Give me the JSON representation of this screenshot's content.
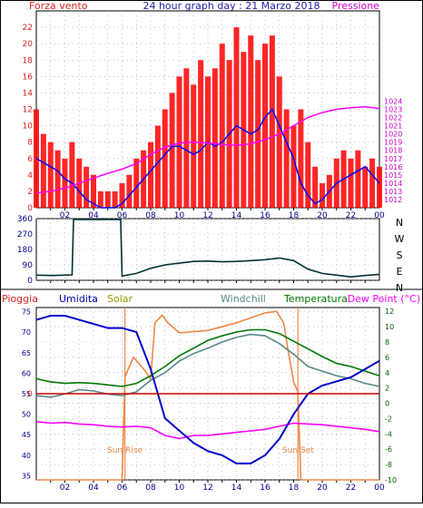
{
  "chart_data": [
    {
      "type": "line",
      "title": "24 hour graph day : 21 Marzo 2018",
      "left_axis_label": "Forza vento",
      "right_axis_label": "Pressione",
      "ylim_left": [
        0,
        24
      ],
      "yticks_left": [
        0,
        2,
        4,
        6,
        8,
        10,
        12,
        14,
        16,
        18,
        20,
        22
      ],
      "ylim_right": [
        1011,
        1035
      ],
      "yticks_right": [
        1012,
        1013,
        1014,
        1015,
        1016,
        1017,
        1018,
        1019,
        1020,
        1021,
        1022,
        1023,
        1024
      ],
      "xlim": [
        0,
        24
      ],
      "xticks": [
        "02",
        "04",
        "06",
        "08",
        "10",
        "12",
        "14",
        "16",
        "18",
        "20",
        "22",
        "00"
      ],
      "grid": true,
      "series": [
        {
          "axis": "left",
          "color": "#ff0000",
          "kind": "bars",
          "x": [
            0,
            0.5,
            1,
            1.5,
            2,
            2.5,
            3,
            3.5,
            4,
            4.5,
            5,
            5.5,
            6,
            6.5,
            7,
            7.5,
            8,
            8.5,
            9,
            9.5,
            10,
            10.5,
            11,
            11.5,
            12,
            12.5,
            13,
            13.5,
            14,
            14.5,
            15,
            15.5,
            16,
            16.5,
            17,
            17.5,
            18,
            18.5,
            19,
            19.5,
            20,
            20.5,
            21,
            21.5,
            22,
            22.5,
            23,
            23.5,
            24
          ],
          "y": [
            12,
            9,
            8,
            7,
            6,
            8,
            6,
            5,
            4,
            2,
            2,
            2,
            3,
            4,
            6,
            7,
            8,
            10,
            12,
            14,
            16,
            17,
            15,
            18,
            16,
            17,
            20,
            18,
            22,
            19,
            21,
            18,
            20,
            21,
            16,
            12,
            10,
            12,
            8,
            5,
            3,
            4,
            6,
            7,
            6,
            7,
            5,
            6,
            5
          ]
        },
        {
          "axis": "left",
          "color": "#0000ff",
          "x": [
            0,
            0.5,
            1,
            1.5,
            2,
            2.5,
            3,
            3.5,
            4,
            4.5,
            5,
            5.5,
            6,
            6.5,
            7,
            7.5,
            8,
            8.5,
            9,
            9.5,
            10,
            10.5,
            11,
            11.5,
            12,
            12.5,
            13,
            13.5,
            14,
            14.5,
            15,
            15.5,
            16,
            16.5,
            17,
            17.5,
            18,
            18.5,
            19,
            19.5,
            20,
            20.5,
            21,
            21.5,
            22,
            22.5,
            23,
            23.5,
            24
          ],
          "y": [
            6,
            5.5,
            5,
            4.5,
            3.5,
            3,
            2,
            1,
            0.5,
            0,
            0,
            0,
            0.5,
            1.5,
            2.5,
            3.5,
            4.5,
            5.5,
            6.5,
            7.5,
            7.5,
            7,
            6.5,
            7,
            8,
            7.5,
            8,
            9,
            10,
            9.5,
            9,
            9.5,
            11,
            12,
            10,
            8,
            6,
            3,
            1.5,
            0.5,
            1,
            2,
            3,
            3.5,
            4,
            4.5,
            5,
            4,
            3
          ]
        },
        {
          "axis": "right",
          "color": "#ff00ff",
          "x": [
            0,
            1,
            2,
            3,
            4,
            5,
            6,
            7,
            8,
            9,
            10,
            11,
            12,
            13,
            14,
            15,
            16,
            17,
            18,
            19,
            20,
            21,
            22,
            23,
            24
          ],
          "y": [
            1012.8,
            1013,
            1013.4,
            1014,
            1014.6,
            1015.2,
            1015.7,
            1016.4,
            1017.5,
            1018.4,
            1018.9,
            1019,
            1018.9,
            1018.7,
            1018.6,
            1018.8,
            1019.3,
            1020,
            1021,
            1022,
            1022.6,
            1023,
            1023.2,
            1023.3,
            1023.1
          ]
        }
      ]
    },
    {
      "type": "line",
      "right_labels": [
        "N",
        "W",
        "S",
        "E",
        "N"
      ],
      "ylim": [
        0,
        360
      ],
      "yticks": [
        0,
        90,
        180,
        270,
        360
      ],
      "xlim": [
        0,
        24
      ],
      "grid": true,
      "series": [
        {
          "color": "#003333",
          "x": [
            0,
            1,
            2,
            2.5,
            2.6,
            4,
            5,
            5.9,
            6,
            7,
            8,
            9,
            10,
            11,
            12,
            13,
            14,
            15,
            16,
            17,
            18,
            19,
            20,
            21,
            22,
            23,
            24
          ],
          "y": [
            30,
            28,
            30,
            32,
            355,
            355,
            355,
            355,
            25,
            40,
            70,
            90,
            100,
            110,
            112,
            108,
            110,
            115,
            120,
            130,
            115,
            65,
            40,
            30,
            20,
            28,
            35
          ]
        }
      ]
    },
    {
      "type": "line",
      "legend": [
        "Pioggia",
        "Umidita",
        "Solar",
        "Windchill",
        "Temperatura",
        "Dew Point (°C)"
      ],
      "legend_colors": [
        "#ff0000",
        "#0000aa",
        "#999900",
        "#558888",
        "#007700",
        "#ff00ff"
      ],
      "ylim_left": [
        34,
        76
      ],
      "yticks_left": [
        35,
        40,
        45,
        50,
        55,
        60,
        65,
        70,
        75
      ],
      "ylim_right": [
        -10,
        12.5
      ],
      "yticks_right": [
        -10,
        -8,
        -6,
        -4,
        -2,
        0,
        2,
        4,
        6,
        8,
        10,
        12
      ],
      "xlim": [
        0,
        24
      ],
      "annotations": [
        "Sun Rise",
        "Sun Set"
      ],
      "sunrise": 6.2,
      "sunset": 18.3,
      "rain_level": 55,
      "series": [
        {
          "name": "Umidita",
          "axis": "left",
          "color": "#0000cc",
          "x": [
            0,
            1,
            2,
            3,
            4,
            5,
            6,
            7,
            8,
            9,
            10,
            11,
            12,
            13,
            14,
            15,
            16,
            17,
            18,
            19,
            20,
            21,
            22,
            23,
            24
          ],
          "y": [
            73,
            74,
            74,
            73,
            72,
            71,
            71,
            70,
            61,
            49,
            46,
            43,
            41,
            40,
            38,
            38,
            40,
            44,
            50,
            55,
            57,
            58,
            59,
            61,
            63
          ]
        },
        {
          "name": "Temperatura",
          "axis": "right",
          "color": "#007700",
          "x": [
            0,
            1,
            2,
            3,
            4,
            5,
            6,
            7,
            8,
            9,
            10,
            11,
            12,
            13,
            14,
            15,
            16,
            17,
            18,
            19,
            20,
            21,
            22,
            23,
            24
          ],
          "y": [
            3.2,
            2.8,
            2.6,
            2.7,
            2.6,
            2.4,
            2.2,
            2.6,
            3.6,
            4.8,
            6.2,
            7.2,
            8.2,
            8.8,
            9.3,
            9.6,
            9.6,
            9.1,
            8.1,
            7.1,
            6.1,
            5.2,
            4.8,
            4.2,
            3.6
          ]
        },
        {
          "name": "Windchill",
          "axis": "right",
          "color": "#558888",
          "x": [
            0,
            1,
            2,
            3,
            4,
            5,
            6,
            7,
            8,
            9,
            10,
            11,
            12,
            13,
            14,
            15,
            16,
            17,
            18,
            19,
            20,
            21,
            22,
            23,
            24
          ],
          "y": [
            1,
            0.8,
            1.2,
            1.8,
            1.6,
            1.2,
            1,
            1.5,
            3,
            4,
            5.5,
            6.5,
            7.2,
            8,
            8.6,
            9,
            8.8,
            7.8,
            6.4,
            4.8,
            4.2,
            3.6,
            3.2,
            2.6,
            2.2
          ]
        },
        {
          "name": "Dew Point (°C)",
          "axis": "right",
          "color": "#ff00ff",
          "x": [
            0,
            1,
            2,
            3,
            4,
            5,
            6,
            7,
            8,
            9,
            10,
            11,
            12,
            13,
            14,
            15,
            16,
            17,
            18,
            19,
            20,
            21,
            22,
            23,
            24
          ],
          "y": [
            -2.4,
            -2.6,
            -2.5,
            -2.7,
            -2.8,
            -3,
            -3.1,
            -3,
            -3.2,
            -4.2,
            -4.6,
            -4.2,
            -4.2,
            -4,
            -3.8,
            -3.6,
            -3.4,
            -3,
            -2.6,
            -2.7,
            -2.8,
            -3,
            -3.2,
            -3.4,
            -3.7
          ]
        },
        {
          "name": "Solar",
          "axis": "right",
          "color": "#ee8844",
          "x": [
            0,
            6,
            6.2,
            6.8,
            7.5,
            8,
            8.3,
            8.8,
            9.2,
            10,
            12,
            14,
            16,
            16.8,
            17.3,
            17.6,
            18,
            18.3,
            18.5,
            24
          ],
          "y": [
            -10,
            -10,
            3.5,
            6,
            4.5,
            3.2,
            10.5,
            11.5,
            10.5,
            9.2,
            9.5,
            10.5,
            11.8,
            12,
            10.5,
            7,
            2.8,
            1.5,
            -10,
            -10
          ]
        },
        {
          "name": "Pioggia",
          "axis": "left",
          "color": "#cc0000",
          "x": [
            0,
            24
          ],
          "y": [
            55,
            55
          ]
        }
      ]
    }
  ]
}
